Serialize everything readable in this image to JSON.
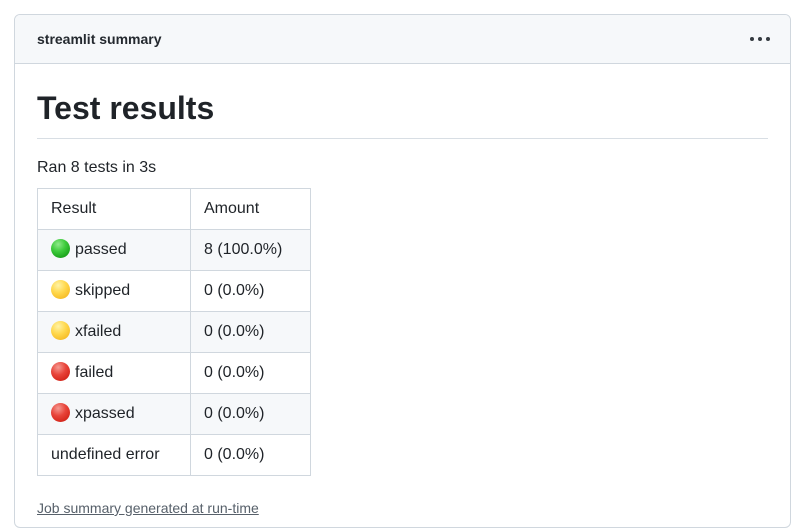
{
  "card": {
    "header": {
      "title": "streamlit summary",
      "menu_icon": "kebab-horizontal-icon"
    },
    "body": {
      "heading": "Test results",
      "summary_line": "Ran 8 tests in 3s",
      "table": {
        "columns": [
          "Result",
          "Amount"
        ],
        "rows": [
          {
            "status": "passed",
            "dot": "green-circle-icon",
            "amount": "8 (100.0%)"
          },
          {
            "status": "skipped",
            "dot": "yellow-circle-icon",
            "amount": "0 (0.0%)"
          },
          {
            "status": "xfailed",
            "dot": "yellow-circle-icon",
            "amount": "0 (0.0%)"
          },
          {
            "status": "failed",
            "dot": "red-circle-icon",
            "amount": "0 (0.0%)"
          },
          {
            "status": "xpassed",
            "dot": "red-circle-icon",
            "amount": "0 (0.0%)"
          },
          {
            "status": "undefined error",
            "dot": null,
            "amount": "0 (0.0%)"
          }
        ]
      },
      "footer_link": "Job summary generated at run-time"
    }
  },
  "colors": {
    "header_bg": "#f6f8fa",
    "card_border": "#d0d7de",
    "row_alt_bg": "#f6f8fa",
    "text": "#1f2328",
    "muted_link": "#57606a",
    "dot_green": "#2db82d",
    "dot_yellow": "#ffd84d",
    "dot_red": "#e03428"
  }
}
